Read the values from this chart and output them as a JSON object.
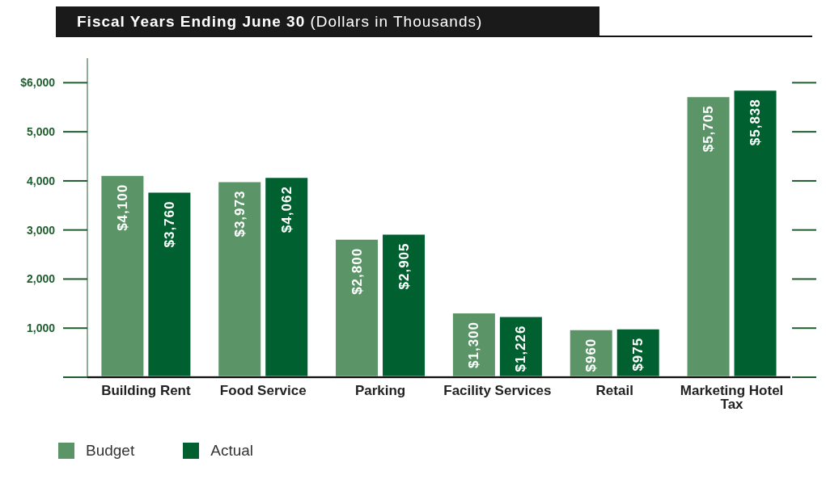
{
  "chart_data": {
    "type": "bar",
    "title": "Fiscal Years Ending June 30",
    "subtitle": "(Dollars in Thousands)",
    "categories": [
      "Building Rent",
      "Food Service",
      "Parking",
      "Facility Services",
      "Retail",
      "Marketing Hotel Tax"
    ],
    "series": [
      {
        "name": "Budget",
        "color": "#5a9467",
        "values": [
          4100,
          3973,
          2800,
          1300,
          960,
          5705
        ],
        "value_labels": [
          "$4,100",
          "$3,973",
          "$2,800",
          "$1,300",
          "$960",
          "$5,705"
        ]
      },
      {
        "name": "Actual",
        "color": "#006030",
        "values": [
          3760,
          4062,
          2905,
          1226,
          975,
          5838
        ],
        "value_labels": [
          "$3,760",
          "$4,062",
          "$2,905",
          "$1,226",
          "$975",
          "$5,838"
        ]
      }
    ],
    "ylim": [
      0,
      6500
    ],
    "yticks": [
      {
        "value": 0,
        "label": null
      },
      {
        "value": 1000,
        "label": "1,000"
      },
      {
        "value": 2000,
        "label": "2,000"
      },
      {
        "value": 3000,
        "label": "3,000"
      },
      {
        "value": 4000,
        "label": "4,000"
      },
      {
        "value": 5000,
        "label": "5,000"
      },
      {
        "value": 6000,
        "label": "$6,000"
      }
    ],
    "grid": false,
    "legend": "bottom left"
  }
}
